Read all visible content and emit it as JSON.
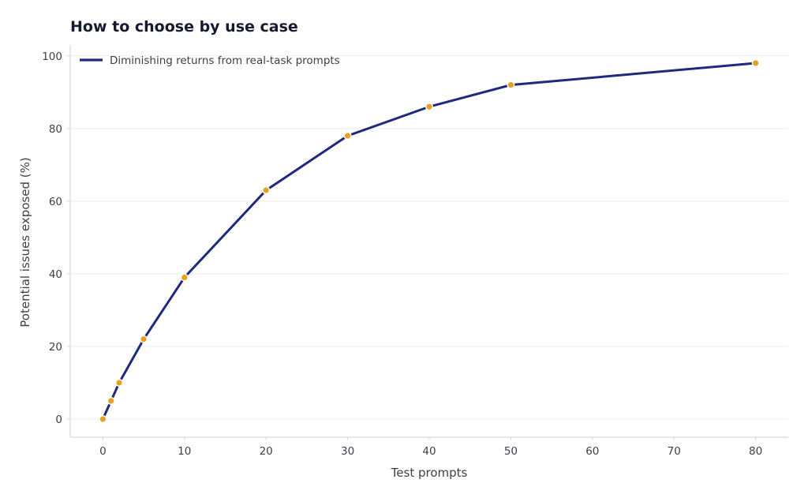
{
  "chart_data": {
    "type": "line",
    "title": "How to choose by use case",
    "xlabel": "Test prompts",
    "ylabel": "Potential issues exposed (%)",
    "xlim": [
      -4,
      84
    ],
    "ylim": [
      -5,
      103
    ],
    "x_ticks": [
      0,
      10,
      20,
      30,
      40,
      50,
      60,
      70,
      80
    ],
    "y_ticks": [
      0,
      20,
      40,
      60,
      80,
      100
    ],
    "grid": "horizontal",
    "legend_position": "top-left",
    "series": [
      {
        "name": "Diminishing returns from real-task prompts",
        "color": "#1f2a7a",
        "marker_color": "#e8a020",
        "x": [
          0,
          1,
          2,
          5,
          10,
          20,
          30,
          40,
          50,
          80
        ],
        "y": [
          0,
          5,
          10,
          22,
          39,
          63,
          78,
          86,
          92,
          98
        ]
      }
    ]
  }
}
